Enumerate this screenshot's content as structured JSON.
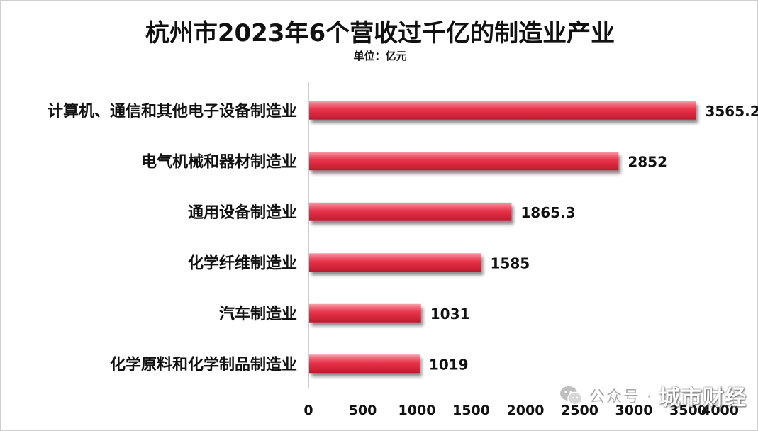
{
  "chart_data": {
    "type": "bar",
    "orientation": "horizontal",
    "title": "杭州市2023年6个营收过千亿的制造业产业",
    "subtitle": "单位：亿元",
    "categories": [
      "计算机、通信和其他电子设备制造业",
      "电气机械和器材制造业",
      "通用设备制造业",
      "化学纤维制造业",
      "汽车制造业",
      "化学原料和化学制品制造业"
    ],
    "values": [
      3565.2,
      2852,
      1865.3,
      1585,
      1031,
      1019
    ],
    "value_labels": [
      "3565.2",
      "2852",
      "1865.3",
      "1585",
      "1031",
      "1019"
    ],
    "xlim": [
      0,
      4000
    ],
    "x_ticks": [
      "0",
      "500",
      "1000",
      "1500",
      "2000",
      "2500",
      "3000",
      "3500",
      "4000"
    ],
    "bar_color": "#e8334a",
    "grid": false,
    "legend": "none"
  },
  "watermark": {
    "prefix": "公众号 ·",
    "brand": "城市财经",
    "icon": "wechat-icon"
  }
}
